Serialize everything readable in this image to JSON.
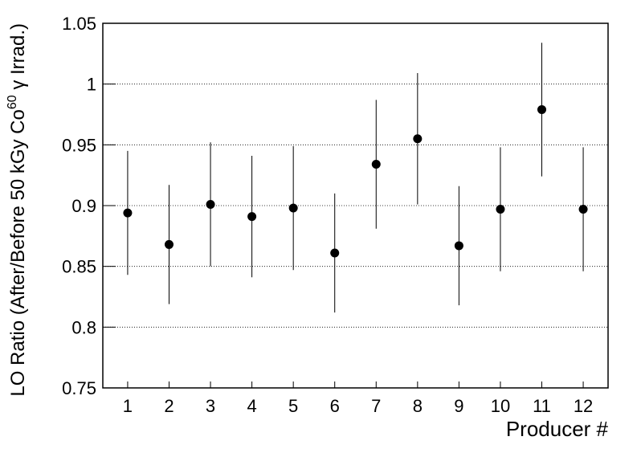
{
  "chart_data": {
    "type": "errorbar",
    "xlabel": "Producer #",
    "ylabel": "LO Ratio (After/Before 50 kGy Co",
    "ylabel_sup": "60",
    "ylabel_end": " γ Irrad.)",
    "x": [
      1,
      2,
      3,
      4,
      5,
      6,
      7,
      8,
      9,
      10,
      11,
      12
    ],
    "values": [
      0.894,
      0.868,
      0.901,
      0.891,
      0.898,
      0.861,
      0.934,
      0.955,
      0.867,
      0.897,
      0.979,
      0.897
    ],
    "errors": [
      0.051,
      0.049,
      0.051,
      0.05,
      0.051,
      0.049,
      0.053,
      0.054,
      0.049,
      0.051,
      0.055,
      0.051
    ],
    "color": "#000000",
    "xlim": [
      0.4,
      12.6
    ],
    "xticks": [
      1,
      2,
      3,
      4,
      5,
      6,
      7,
      8,
      9,
      10,
      11,
      12
    ],
    "ylim": [
      0.75,
      1.05
    ],
    "yticks": [
      0.75,
      0.8,
      0.85,
      0.9,
      0.95,
      1,
      1.05
    ],
    "grid": true
  }
}
